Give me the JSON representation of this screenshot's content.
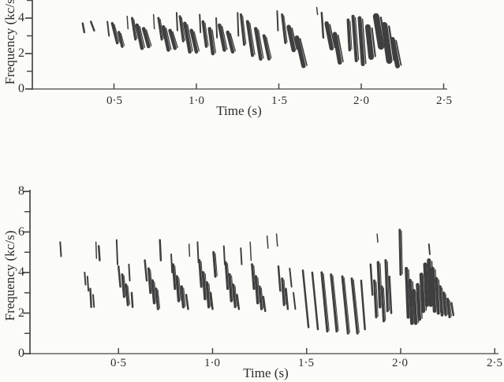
{
  "colors": {
    "ink": "#3f3f3f",
    "axis": "#474745",
    "text": "#2e2e2e",
    "background": "#fbfbf8"
  },
  "chart_data": [
    {
      "type": "spectrogram",
      "panel": "top",
      "xlabel": "Time (s)",
      "ylabel": "Frequency (kc/s)",
      "xlim": [
        0,
        2.55
      ],
      "ylim_visible": [
        0,
        4.9
      ],
      "grid": false,
      "x_ticks": [
        {
          "v": 0.5,
          "label": "0·5"
        },
        {
          "v": 1.0,
          "label": "1·0"
        },
        {
          "v": 1.5,
          "label": "1·5"
        },
        {
          "v": 2.0,
          "label": "2·0"
        },
        {
          "v": 2.5,
          "label": "2·5"
        }
      ],
      "y_ticks_major": [
        {
          "v": 4,
          "label": "4"
        },
        {
          "v": 2,
          "label": "2"
        },
        {
          "v": 0,
          "label": "0"
        }
      ],
      "y_ticks_minor": [
        5,
        3,
        1
      ],
      "marks_format": [
        "t1_s",
        "f1_kc",
        "t2_s",
        "f2_kc",
        "width_px"
      ],
      "marks": [
        [
          0.31,
          3.7,
          0.32,
          3.2,
          2.5
        ],
        [
          0.36,
          3.8,
          0.38,
          3.3,
          2.5
        ],
        [
          0.46,
          3.8,
          0.47,
          3.0,
          2
        ],
        [
          0.49,
          3.7,
          0.52,
          2.6,
          3.5
        ],
        [
          0.53,
          3.2,
          0.55,
          2.4,
          3.5
        ],
        [
          0.58,
          4.1,
          0.585,
          3.4,
          1.5
        ],
        [
          0.61,
          4.0,
          0.63,
          2.8,
          3
        ],
        [
          0.64,
          3.6,
          0.67,
          2.3,
          4.5
        ],
        [
          0.68,
          3.4,
          0.71,
          2.4,
          4.5
        ],
        [
          0.74,
          4.2,
          0.745,
          3.4,
          1.5
        ],
        [
          0.77,
          4.0,
          0.79,
          2.8,
          3
        ],
        [
          0.8,
          3.5,
          0.83,
          2.2,
          4.5
        ],
        [
          0.84,
          3.3,
          0.87,
          2.3,
          4.5
        ],
        [
          0.88,
          4.3,
          0.885,
          3.3,
          2
        ],
        [
          0.9,
          4.1,
          0.92,
          2.7,
          3
        ],
        [
          0.93,
          3.7,
          0.96,
          2.1,
          4.5
        ],
        [
          0.97,
          3.3,
          1.0,
          2.1,
          4.5
        ],
        [
          1.02,
          4.2,
          1.025,
          3.2,
          2
        ],
        [
          1.04,
          3.8,
          1.06,
          2.4,
          3.5
        ],
        [
          1.08,
          3.4,
          1.1,
          2.0,
          4.5
        ],
        [
          1.12,
          4.0,
          1.125,
          2.9,
          2
        ],
        [
          1.14,
          3.6,
          1.17,
          2.2,
          4.5
        ],
        [
          1.19,
          3.2,
          1.22,
          2.1,
          4.5
        ],
        [
          1.25,
          4.3,
          1.255,
          3.0,
          2
        ],
        [
          1.27,
          4.2,
          1.29,
          2.5,
          3
        ],
        [
          1.31,
          3.8,
          1.34,
          1.9,
          4
        ],
        [
          1.36,
          3.4,
          1.39,
          1.7,
          4.5
        ],
        [
          1.41,
          3.0,
          1.44,
          1.7,
          4
        ],
        [
          1.49,
          4.4,
          1.495,
          3.3,
          2
        ],
        [
          1.52,
          4.2,
          1.54,
          2.6,
          3
        ],
        [
          1.56,
          3.5,
          1.59,
          2.2,
          5.5
        ],
        [
          1.61,
          2.9,
          1.65,
          1.3,
          5.5
        ],
        [
          1.73,
          4.6,
          1.735,
          4.2,
          1.5
        ],
        [
          1.76,
          4.3,
          1.77,
          2.9,
          2.5
        ],
        [
          1.79,
          3.7,
          1.82,
          2.3,
          5.5
        ],
        [
          1.84,
          3.1,
          1.87,
          1.5,
          5.5
        ],
        [
          1.92,
          3.9,
          1.93,
          2.2,
          3.5
        ],
        [
          1.95,
          4.1,
          1.97,
          1.6,
          4
        ],
        [
          1.99,
          4.0,
          2.01,
          1.4,
          5
        ],
        [
          2.04,
          3.5,
          2.06,
          1.8,
          7
        ],
        [
          2.09,
          4.1,
          2.12,
          2.4,
          8
        ],
        [
          2.14,
          3.6,
          2.17,
          1.6,
          8
        ],
        [
          2.19,
          2.8,
          2.22,
          1.3,
          6
        ]
      ]
    },
    {
      "type": "spectrogram",
      "panel": "bottom",
      "xlabel": "Time (s)",
      "ylabel": "Frequency (kc/s)",
      "xlim": [
        0,
        2.55
      ],
      "ylim_visible": [
        0,
        8.1
      ],
      "grid": false,
      "x_ticks": [
        {
          "v": 0.5,
          "label": "0·5"
        },
        {
          "v": 1.0,
          "label": "1·0"
        },
        {
          "v": 1.5,
          "label": "1·5"
        },
        {
          "v": 2.0,
          "label": "2·0"
        },
        {
          "v": 2.5,
          "label": "2·5"
        }
      ],
      "y_ticks_major": [
        {
          "v": 8,
          "label": "8"
        },
        {
          "v": 6,
          "label": "6"
        },
        {
          "v": 4,
          "label": "4"
        },
        {
          "v": 2,
          "label": "2"
        },
        {
          "v": 0,
          "label": "0"
        }
      ],
      "y_ticks_minor": [
        7,
        5,
        3,
        1
      ],
      "marks_format": [
        "t1_s",
        "f1_kc",
        "t2_s",
        "f2_kc",
        "width_px"
      ],
      "marks": [
        [
          0.19,
          5.5,
          0.195,
          4.8,
          2
        ],
        [
          0.32,
          4.0,
          0.325,
          3.4,
          2
        ],
        [
          0.335,
          3.8,
          0.34,
          3.1,
          2
        ],
        [
          0.35,
          3.2,
          0.355,
          2.3,
          2.5
        ],
        [
          0.365,
          2.9,
          0.37,
          2.3,
          2
        ],
        [
          0.38,
          5.5,
          0.383,
          4.7,
          1.5
        ],
        [
          0.395,
          5.3,
          0.4,
          4.6,
          2.5
        ],
        [
          0.49,
          5.6,
          0.495,
          4.4,
          2
        ],
        [
          0.5,
          4.3,
          0.51,
          3.3,
          2.5
        ],
        [
          0.52,
          3.9,
          0.53,
          2.8,
          3
        ],
        [
          0.54,
          3.4,
          0.55,
          2.4,
          3
        ],
        [
          0.555,
          4.4,
          0.56,
          3.6,
          2
        ],
        [
          0.57,
          3.0,
          0.575,
          2.3,
          2.5
        ],
        [
          0.64,
          4.6,
          0.65,
          3.6,
          2.5
        ],
        [
          0.66,
          4.2,
          0.67,
          3.0,
          3
        ],
        [
          0.68,
          3.6,
          0.69,
          2.5,
          3.5
        ],
        [
          0.7,
          3.2,
          0.71,
          2.2,
          3
        ],
        [
          0.72,
          5.6,
          0.725,
          4.6,
          2.5
        ],
        [
          0.78,
          4.9,
          0.785,
          4.0,
          2
        ],
        [
          0.79,
          4.4,
          0.8,
          3.2,
          3
        ],
        [
          0.81,
          3.8,
          0.82,
          2.6,
          3.5
        ],
        [
          0.835,
          3.3,
          0.845,
          2.3,
          3.5
        ],
        [
          0.86,
          2.9,
          0.87,
          2.2,
          2.5
        ],
        [
          0.875,
          5.4,
          0.878,
          4.8,
          1.5
        ],
        [
          0.92,
          5.5,
          0.925,
          4.5,
          2
        ],
        [
          0.93,
          4.6,
          0.94,
          3.3,
          3
        ],
        [
          0.95,
          4.0,
          0.96,
          2.7,
          3.5
        ],
        [
          0.97,
          3.5,
          0.98,
          2.3,
          3.5
        ],
        [
          0.99,
          3.0,
          1.0,
          2.2,
          2.5
        ],
        [
          1.005,
          5.0,
          1.015,
          3.8,
          3
        ],
        [
          1.06,
          5.3,
          1.065,
          4.4,
          2
        ],
        [
          1.07,
          4.5,
          1.08,
          3.2,
          3
        ],
        [
          1.09,
          3.9,
          1.1,
          2.6,
          3.5
        ],
        [
          1.11,
          3.4,
          1.12,
          2.3,
          3
        ],
        [
          1.13,
          2.9,
          1.14,
          2.2,
          2.5
        ],
        [
          1.15,
          5.2,
          1.155,
          4.4,
          2
        ],
        [
          1.2,
          5.5,
          1.205,
          4.6,
          1.5
        ],
        [
          1.21,
          4.4,
          1.22,
          3.2,
          3
        ],
        [
          1.23,
          3.8,
          1.24,
          2.5,
          3.5
        ],
        [
          1.25,
          3.3,
          1.26,
          2.2,
          3
        ],
        [
          1.27,
          2.8,
          1.28,
          2.1,
          2.5
        ],
        [
          1.29,
          5.8,
          1.295,
          5.2,
          1.5
        ],
        [
          1.34,
          5.9,
          1.345,
          5.3,
          1.5
        ],
        [
          1.35,
          4.3,
          1.36,
          3.1,
          2.5
        ],
        [
          1.37,
          3.7,
          1.38,
          2.4,
          3
        ],
        [
          1.39,
          3.2,
          1.4,
          2.2,
          2.5
        ],
        [
          1.41,
          4.2,
          1.42,
          3.3,
          2
        ],
        [
          1.43,
          3.0,
          1.44,
          2.2,
          2
        ],
        [
          1.48,
          4.1,
          1.51,
          1.3,
          2.5
        ],
        [
          1.53,
          4.0,
          1.56,
          1.2,
          2.5
        ],
        [
          1.58,
          4.0,
          1.61,
          1.1,
          3
        ],
        [
          1.63,
          3.9,
          1.66,
          1.1,
          3
        ],
        [
          1.69,
          3.8,
          1.72,
          1.0,
          3
        ],
        [
          1.74,
          3.7,
          1.77,
          1.0,
          3
        ],
        [
          1.79,
          3.6,
          1.81,
          1.2,
          2.5
        ],
        [
          1.84,
          4.4,
          1.85,
          2.9,
          2.5
        ],
        [
          1.86,
          3.6,
          1.87,
          1.8,
          3
        ],
        [
          1.875,
          5.9,
          1.878,
          5.5,
          1.5
        ],
        [
          1.88,
          4.5,
          1.89,
          2.3,
          3.5
        ],
        [
          1.9,
          3.3,
          1.91,
          1.6,
          3
        ],
        [
          1.92,
          4.6,
          1.93,
          2.1,
          3
        ],
        [
          1.94,
          3.8,
          1.95,
          2.0,
          2.5
        ],
        [
          1.995,
          6.1,
          2.0,
          3.9,
          3
        ],
        [
          2.03,
          4.2,
          2.04,
          1.8,
          4
        ],
        [
          2.05,
          3.6,
          2.06,
          1.5,
          4.5
        ],
        [
          2.07,
          3.1,
          2.08,
          1.5,
          4.5
        ],
        [
          2.09,
          3.4,
          2.1,
          1.7,
          4.5
        ],
        [
          2.11,
          3.9,
          2.12,
          2.1,
          5
        ],
        [
          2.13,
          4.4,
          2.14,
          2.4,
          5
        ],
        [
          2.15,
          4.6,
          2.16,
          2.4,
          5
        ],
        [
          2.15,
          5.4,
          2.155,
          4.9,
          2
        ],
        [
          2.17,
          4.2,
          2.18,
          2.1,
          4.5
        ],
        [
          2.19,
          3.7,
          2.2,
          2.0,
          4
        ],
        [
          2.21,
          3.3,
          2.22,
          1.9,
          3.5
        ],
        [
          2.23,
          3.0,
          2.24,
          1.9,
          3
        ],
        [
          2.25,
          2.7,
          2.26,
          1.8,
          3
        ],
        [
          2.27,
          2.5,
          2.28,
          1.9,
          2.5
        ]
      ]
    }
  ]
}
